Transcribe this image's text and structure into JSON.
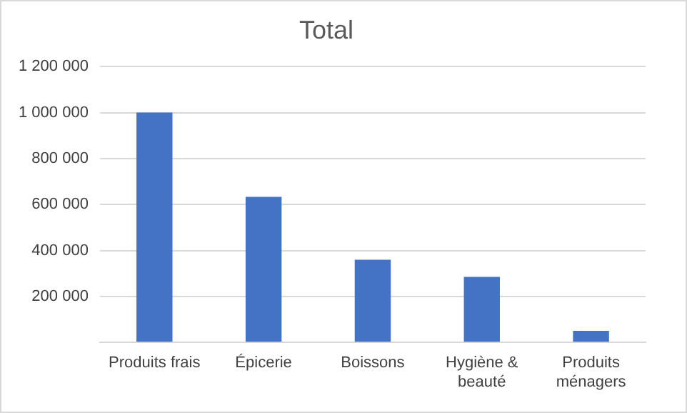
{
  "chart_data": {
    "type": "bar",
    "title": "Total",
    "categories": [
      "Produits frais",
      "Épicerie",
      "Boissons",
      "Hygiène & beauté",
      "Produits ménagers"
    ],
    "values": [
      1000000,
      633000,
      360000,
      285000,
      50000
    ],
    "color": "#4472c4",
    "ylim": [
      0,
      1200000
    ],
    "yticks": [
      {
        "value": 0,
        "label": null
      },
      {
        "value": 200000,
        "label": "200 000"
      },
      {
        "value": 400000,
        "label": "400 000"
      },
      {
        "value": 600000,
        "label": "600 000"
      },
      {
        "value": 800000,
        "label": "800 000"
      },
      {
        "value": 1000000,
        "label": "1 000 000"
      },
      {
        "value": 1200000,
        "label": "1 200 000"
      }
    ],
    "grid": "y",
    "legend": false
  }
}
